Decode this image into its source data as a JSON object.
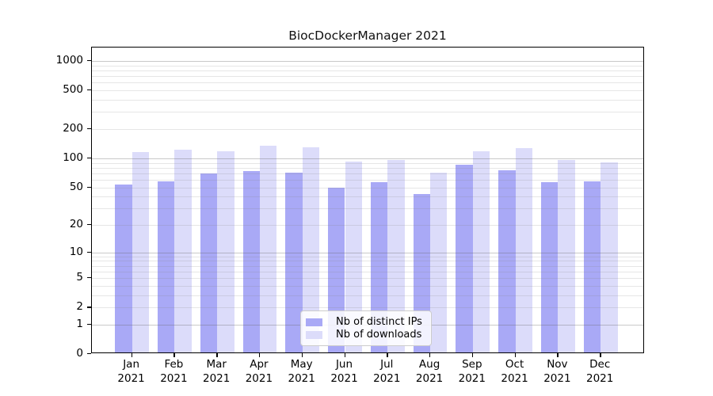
{
  "title": "BiocDockerManager 2021",
  "colors": {
    "distinct_ips": "#a9a9f6",
    "downloads": "#dcdcfa",
    "grid_major": "rgba(100,100,100,0.35)",
    "grid_minor": "rgba(130,130,130,0.20)",
    "spine": "#000000",
    "background": "#ffffff"
  },
  "legend": {
    "items": [
      {
        "label": "Nb of distinct IPs",
        "key": "distinct_ips"
      },
      {
        "label": "Nb of downloads",
        "key": "downloads"
      }
    ]
  },
  "x_axis": {
    "months": [
      "Jan",
      "Feb",
      "Mar",
      "Apr",
      "May",
      "Jun",
      "Jul",
      "Aug",
      "Sep",
      "Oct",
      "Nov",
      "Dec"
    ],
    "year": "2021"
  },
  "y_axis": {
    "tick_values": [
      0,
      1,
      2,
      5,
      10,
      20,
      50,
      100,
      200,
      500,
      1000
    ]
  },
  "chart_data": {
    "type": "bar",
    "title": "BiocDockerManager 2021",
    "categories": [
      "Jan 2021",
      "Feb 2021",
      "Mar 2021",
      "Apr 2021",
      "May 2021",
      "Jun 2021",
      "Jul 2021",
      "Aug 2021",
      "Sep 2021",
      "Oct 2021",
      "Nov 2021",
      "Dec 2021"
    ],
    "series": [
      {
        "name": "Nb of distinct IPs",
        "values": [
          51,
          56,
          67,
          71,
          68,
          48,
          54,
          41,
          82,
          72,
          54,
          56
        ]
      },
      {
        "name": "Nb of downloads",
        "values": [
          112,
          118,
          114,
          130,
          125,
          90,
          92,
          68,
          114,
          123,
          92,
          88
        ]
      }
    ],
    "y_scale": "log1p",
    "y_ticks": [
      0,
      1,
      2,
      5,
      10,
      20,
      50,
      100,
      200,
      500,
      1000
    ],
    "ylim": [
      0,
      1300
    ],
    "grid": "horizontal",
    "legend_position": "lower center"
  }
}
